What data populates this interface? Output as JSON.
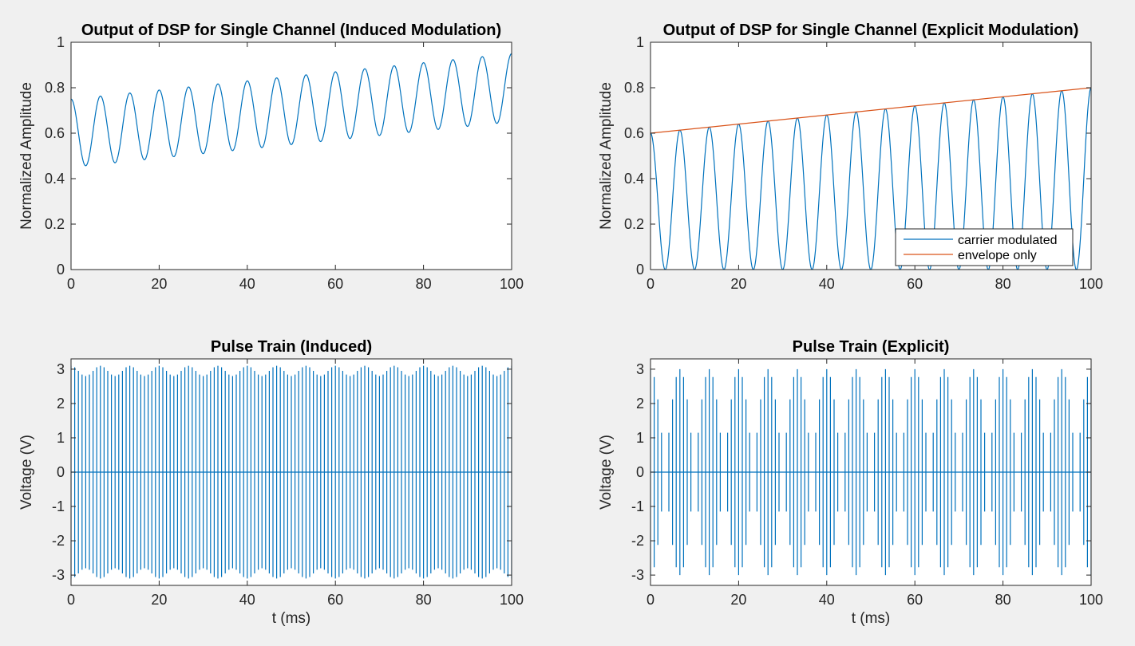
{
  "colors": {
    "figure_background": "#f0f0f0",
    "axes_background": "#ffffff",
    "series_blue": "#0072bd",
    "series_orange": "#d95319",
    "axis_color": "#262626"
  },
  "chart_data": [
    {
      "type": "line",
      "title": "Output of DSP for Single Channel (Induced Modulation)",
      "xlabel": "",
      "ylabel": "Normalized Amplitude",
      "xlim": [
        0,
        100
      ],
      "ylim": [
        0,
        1
      ],
      "xticks": [
        "0",
        "20",
        "40",
        "60",
        "80",
        "100"
      ],
      "yticks": [
        "0",
        "0.2",
        "0.4",
        "0.6",
        "0.8",
        "1"
      ],
      "grid": false,
      "legend": null,
      "series": [
        {
          "color": "#0072bd",
          "function": "induced_dsp",
          "description": "0.1 + 0.6*(x/100+1)/2*... sum of 150 Hz carrier and slow ramp",
          "baseline_start": 0.6,
          "baseline_end": 0.8,
          "amplitude": 0.15,
          "frequency_per_ms": 0.15
        }
      ]
    },
    {
      "type": "line",
      "title": "Output of DSP for Single Channel (Explicit Modulation)",
      "xlabel": "",
      "ylabel": "Normalized Amplitude",
      "xlim": [
        0,
        100
      ],
      "ylim": [
        0,
        1
      ],
      "xticks": [
        "0",
        "20",
        "40",
        "60",
        "80",
        "100"
      ],
      "yticks": [
        "0",
        "0.2",
        "0.4",
        "0.6",
        "0.8",
        "1"
      ],
      "grid": false,
      "legend": {
        "location": "bottom-right"
      },
      "series": [
        {
          "name": "carrier modulated",
          "color": "#0072bd",
          "function": "explicit_dsp",
          "envelope_start": 0.6,
          "envelope_end": 0.8,
          "frequency_per_ms": 0.15
        },
        {
          "name": "envelope only",
          "color": "#d95319",
          "x": [
            0,
            100
          ],
          "y": [
            0.6,
            0.8
          ]
        }
      ]
    },
    {
      "type": "line",
      "title": "Pulse Train (Induced)",
      "xlabel": "t (ms)",
      "ylabel": "Voltage (V)",
      "xlim": [
        0,
        100
      ],
      "ylim": [
        -3.3,
        3.3
      ],
      "xticks": [
        "0",
        "20",
        "40",
        "60",
        "80",
        "100"
      ],
      "yticks": [
        "-3",
        "-2",
        "-1",
        "0",
        "1",
        "2",
        "3"
      ],
      "grid": false,
      "legend": null,
      "series": [
        {
          "color": "#0072bd",
          "function": "induced_pulses",
          "pulse_rate_per_ms": 1.2,
          "peak_mean": 2.95,
          "peak_ripple": 0.15,
          "ripple_frequency_per_ms": 0.15
        }
      ]
    },
    {
      "type": "line",
      "title": "Pulse Train (Explicit)",
      "xlabel": "t (ms)",
      "ylabel": "Voltage (V)",
      "xlim": [
        0,
        100
      ],
      "ylim": [
        -3.3,
        3.3
      ],
      "xticks": [
        "0",
        "20",
        "40",
        "60",
        "80",
        "100"
      ],
      "yticks": [
        "-3",
        "-2",
        "-1",
        "0",
        "1",
        "2",
        "3"
      ],
      "grid": false,
      "legend": null,
      "series": [
        {
          "color": "#0072bd",
          "function": "explicit_pulses",
          "pulse_rate_per_ms": 1.2,
          "peak_max": 3.0,
          "envelope_frequency_per_ms": 0.15
        }
      ]
    }
  ]
}
